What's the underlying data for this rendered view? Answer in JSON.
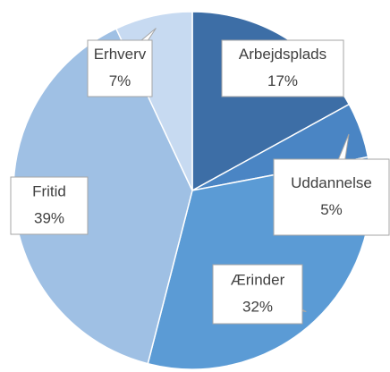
{
  "chart_data": {
    "type": "pie",
    "categories": [
      "Arbejdsplads",
      "Uddannelse",
      "Ærinder",
      "Fritid",
      "Erhverv"
    ],
    "values": [
      17,
      5,
      32,
      39,
      7
    ],
    "value_labels": [
      "17%",
      "5%",
      "32%",
      "39%",
      "7%"
    ],
    "colors": [
      "#3d6ea6",
      "#4a85c4",
      "#5b9bd5",
      "#9fc0e4",
      "#c7daf1"
    ]
  }
}
